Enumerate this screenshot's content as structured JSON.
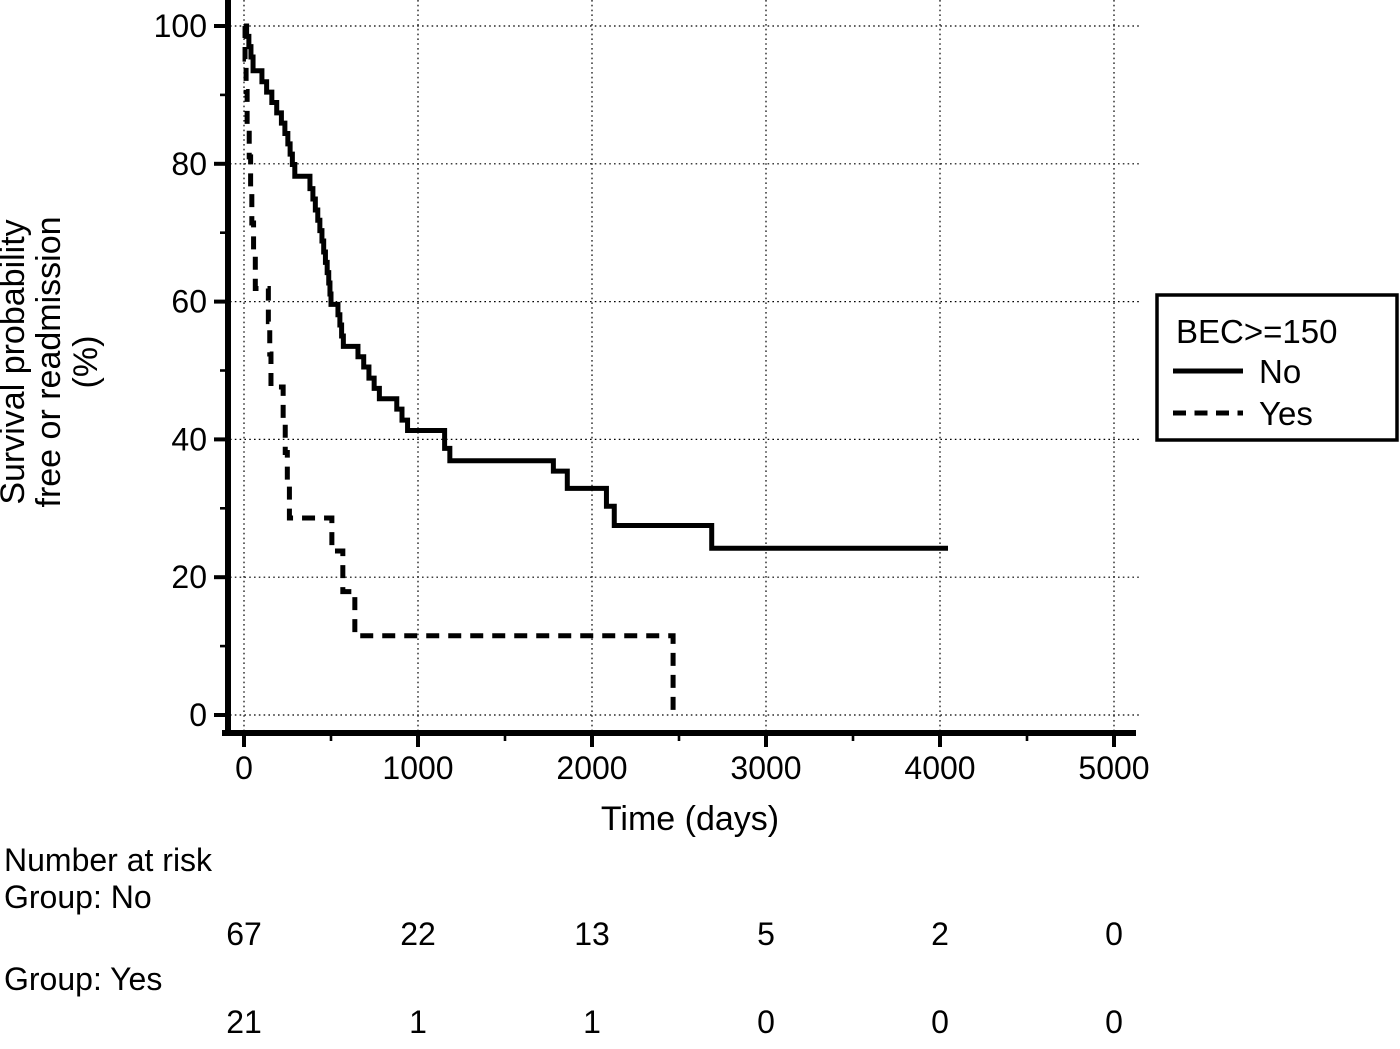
{
  "chart_data": {
    "type": "line",
    "subtype": "kaplan-meier-step",
    "xlabel": "Time (days)",
    "ylabel_lines": [
      "Survival probability",
      "free or readmission",
      "(%)"
    ],
    "xlim": [
      0,
      5130
    ],
    "ylim": [
      0,
      104
    ],
    "x_major_ticks": [
      0,
      1000,
      2000,
      3000,
      4000,
      5000
    ],
    "x_minor_ticks": [
      500,
      1500,
      2500,
      3500,
      4500
    ],
    "y_major_ticks": [
      0,
      20,
      40,
      60,
      80,
      100
    ],
    "y_minor_ticks": [
      10,
      30,
      50,
      70,
      90
    ],
    "grid": true,
    "line_color": "#000000",
    "background_color": "#ffffff",
    "legend": {
      "title": "BEC>=150",
      "position": "right",
      "entries": [
        {
          "label": "No",
          "style": "solid"
        },
        {
          "label": "Yes",
          "style": "dashed"
        }
      ]
    },
    "series": [
      {
        "name": "No",
        "style": "solid",
        "end_time": 4046,
        "steps": [
          [
            0,
            100
          ],
          [
            15,
            98.5
          ],
          [
            28,
            97
          ],
          [
            40,
            95.5
          ],
          [
            52,
            93.5
          ],
          [
            103,
            91.9
          ],
          [
            130,
            90.4
          ],
          [
            160,
            88.9
          ],
          [
            188,
            87.4
          ],
          [
            215,
            85.9
          ],
          [
            235,
            84.4
          ],
          [
            252,
            82.9
          ],
          [
            265,
            81.4
          ],
          [
            278,
            79.9
          ],
          [
            292,
            78.2
          ],
          [
            379,
            76.4
          ],
          [
            396,
            74.9
          ],
          [
            410,
            73.3
          ],
          [
            424,
            71.8
          ],
          [
            436,
            70.3
          ],
          [
            448,
            68.8
          ],
          [
            458,
            67.2
          ],
          [
            468,
            65.7
          ],
          [
            478,
            64.2
          ],
          [
            487,
            62.7
          ],
          [
            494,
            61.1
          ],
          [
            500,
            59.6
          ],
          [
            540,
            58.1
          ],
          [
            551,
            56.6
          ],
          [
            561,
            55
          ],
          [
            571,
            53.5
          ],
          [
            655,
            52
          ],
          [
            688,
            50.5
          ],
          [
            718,
            48.9
          ],
          [
            748,
            47.4
          ],
          [
            778,
            45.9
          ],
          [
            878,
            44.4
          ],
          [
            908,
            42.8
          ],
          [
            940,
            41.3
          ],
          [
            1153,
            38.7
          ],
          [
            1183,
            36.9
          ],
          [
            1778,
            35.4
          ],
          [
            1858,
            32.9
          ],
          [
            2083,
            30.3
          ],
          [
            2128,
            27.5
          ],
          [
            2688,
            24.2
          ]
        ]
      },
      {
        "name": "Yes",
        "style": "dashed",
        "end_time": 2470,
        "steps": [
          [
            0,
            100
          ],
          [
            6,
            95.2
          ],
          [
            12,
            90.5
          ],
          [
            18,
            85.7
          ],
          [
            30,
            81
          ],
          [
            38,
            76.2
          ],
          [
            45,
            71.4
          ],
          [
            55,
            66.7
          ],
          [
            65,
            61.9
          ],
          [
            140,
            57.1
          ],
          [
            148,
            52.4
          ],
          [
            155,
            47.6
          ],
          [
            225,
            42.9
          ],
          [
            237,
            38.1
          ],
          [
            249,
            33.3
          ],
          [
            261,
            28.6
          ],
          [
            505,
            23.8
          ],
          [
            568,
            17.9
          ],
          [
            637,
            11.5
          ],
          [
            2466,
            0
          ]
        ]
      }
    ]
  },
  "risk_table": {
    "title": "Number at risk",
    "time_points": [
      0,
      1000,
      2000,
      3000,
      4000,
      5000
    ],
    "groups": [
      {
        "label": "Group: No",
        "counts": [
          67,
          22,
          13,
          5,
          2,
          0
        ]
      },
      {
        "label": "Group: Yes",
        "counts": [
          21,
          1,
          1,
          0,
          0,
          0
        ]
      }
    ]
  }
}
